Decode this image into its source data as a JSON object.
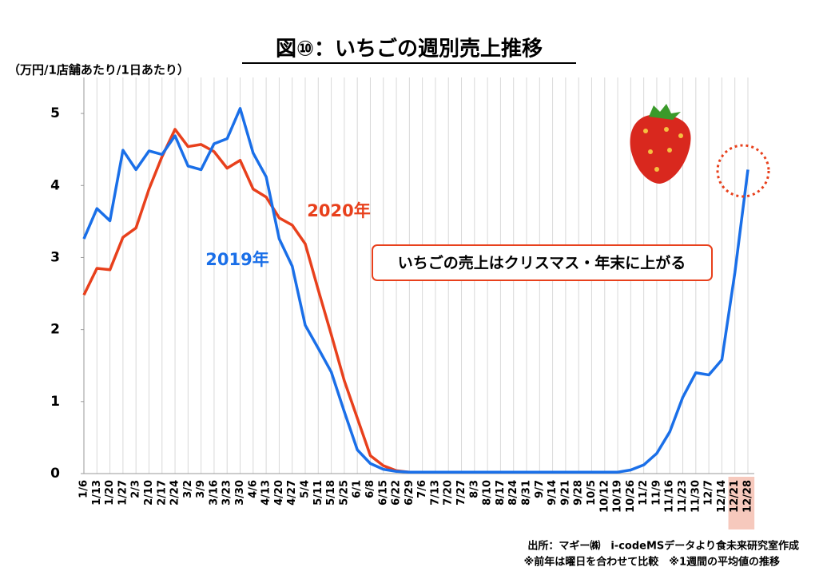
{
  "chart_data": {
    "type": "line",
    "title": "図⑩：いちごの週別売上推移",
    "y_label": "（万円/1店舗あたり/1日あたり）",
    "annotation": "いちごの売上はクリスマス・年末に上がる",
    "source": [
      "出所：マギー㈱　i-codeMSデータより食未来研究室作成",
      "※前年は曜日を合わせて比較　※1週間の平均値の推移"
    ],
    "categories": [
      "1/6",
      "1/13",
      "1/20",
      "1/27",
      "2/3",
      "2/10",
      "2/17",
      "2/24",
      "3/2",
      "3/9",
      "3/16",
      "3/23",
      "3/30",
      "4/6",
      "4/13",
      "4/20",
      "4/27",
      "5/4",
      "5/11",
      "5/18",
      "5/25",
      "6/1",
      "6/8",
      "6/15",
      "6/22",
      "6/29",
      "7/6",
      "7/13",
      "7/20",
      "7/27",
      "8/3",
      "8/10",
      "8/17",
      "8/24",
      "8/31",
      "9/7",
      "9/14",
      "9/21",
      "9/28",
      "10/5",
      "10/12",
      "10/19",
      "10/26",
      "11/2",
      "11/9",
      "11/16",
      "11/23",
      "11/30",
      "12/7",
      "12/14",
      "12/21",
      "12/28"
    ],
    "series": [
      {
        "name": "2019年",
        "color": "#1a6fe8",
        "values": [
          3.26,
          3.68,
          3.51,
          4.49,
          4.22,
          4.48,
          4.43,
          4.69,
          4.27,
          4.22,
          4.58,
          4.65,
          5.07,
          4.45,
          4.12,
          3.26,
          2.88,
          2.06,
          1.74,
          1.41,
          0.86,
          0.33,
          0.14,
          0.06,
          0.03,
          0.02,
          0.02,
          0.02,
          0.02,
          0.02,
          0.02,
          0.02,
          0.02,
          0.02,
          0.02,
          0.02,
          0.02,
          0.02,
          0.02,
          0.02,
          0.02,
          0.02,
          0.05,
          0.12,
          0.28,
          0.58,
          1.06,
          1.4,
          1.37,
          1.58,
          2.79,
          4.22
        ]
      },
      {
        "name": "2020年",
        "color": "#e8401c",
        "values": [
          2.48,
          2.85,
          2.83,
          3.28,
          3.41,
          3.95,
          4.4,
          4.78,
          4.54,
          4.57,
          4.47,
          4.24,
          4.35,
          3.95,
          3.84,
          3.55,
          3.45,
          3.19,
          2.55,
          1.93,
          1.29,
          0.77,
          0.25,
          0.11,
          0.04,
          0.02,
          0.02,
          0.02,
          0.02,
          0.02,
          0.02,
          0.02,
          0.02,
          0.02,
          0.02,
          null,
          null,
          null,
          null,
          null,
          null,
          null,
          null,
          null,
          null,
          null,
          null,
          null,
          null,
          null,
          null,
          null
        ]
      }
    ],
    "ylim": [
      0,
      5.5
    ],
    "yticks": [
      0,
      1,
      2,
      3,
      4,
      5
    ],
    "grid": true
  }
}
